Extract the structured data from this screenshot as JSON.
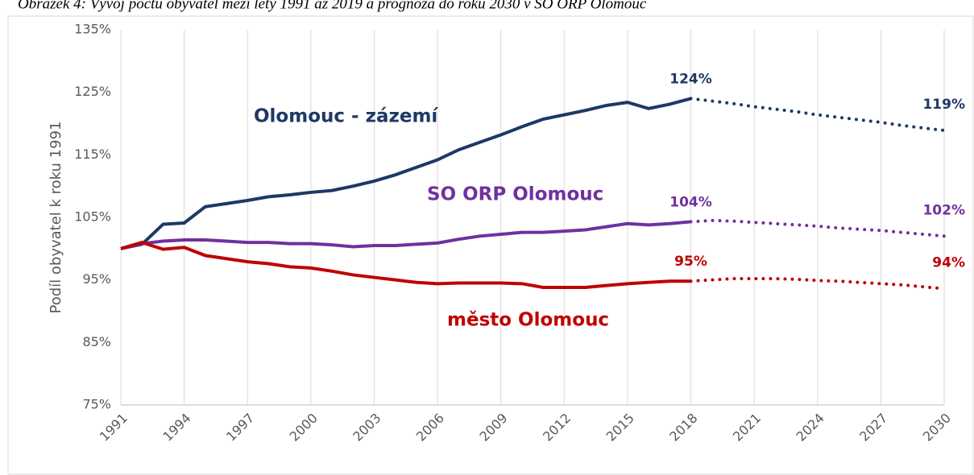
{
  "chart_data": {
    "type": "line",
    "title": "Obrázek 4: Vývoj počtu obyvatel mezi lety 1991 až 2019 a prognóza do roku 2030 v SO ORP Olomouc",
    "y_label": "Podíl obyvatel k roku 1991",
    "x": [
      1991,
      1992,
      1993,
      1994,
      1995,
      1996,
      1997,
      1998,
      1999,
      2000,
      2001,
      2002,
      2003,
      2004,
      2005,
      2006,
      2007,
      2008,
      2009,
      2010,
      2011,
      2012,
      2013,
      2014,
      2015,
      2016,
      2017,
      2018,
      2019,
      2020,
      2021,
      2022,
      2023,
      2024,
      2025,
      2026,
      2027,
      2028,
      2029,
      2030
    ],
    "forecast_from": 2018,
    "xlim": [
      1991,
      2030
    ],
    "xticks": [
      1991,
      1994,
      1997,
      2000,
      2003,
      2006,
      2009,
      2012,
      2015,
      2018,
      2021,
      2024,
      2027,
      2030
    ],
    "ylim": [
      75,
      135
    ],
    "yticks": [
      {
        "value": 75,
        "label": "75%"
      },
      {
        "value": 85,
        "label": "85%"
      },
      {
        "value": 95,
        "label": "95%"
      },
      {
        "value": 105,
        "label": "105%"
      },
      {
        "value": 115,
        "label": "115%"
      },
      {
        "value": 125,
        "label": "125%"
      },
      {
        "value": 135,
        "label": "135%"
      }
    ],
    "grid": "x",
    "series": [
      {
        "name": "Olomouc - zázemí",
        "color": "#1f3864",
        "values": [
          100,
          100.7,
          103.9,
          104.1,
          106.7,
          107.2,
          107.7,
          108.3,
          108.6,
          109.0,
          109.3,
          110.0,
          110.8,
          111.8,
          113.0,
          114.2,
          115.8,
          117.0,
          118.2,
          119.5,
          120.7,
          121.4,
          122.1,
          122.9,
          123.4,
          122.4,
          123.1,
          124.0,
          123.6,
          123.2,
          122.7,
          122.3,
          121.9,
          121.4,
          121.0,
          120.6,
          120.2,
          119.7,
          119.3,
          118.9
        ],
        "value_labels": [
          null,
          null,
          null,
          null,
          null,
          null,
          null,
          null,
          null,
          null,
          null,
          null,
          null,
          null,
          null,
          null,
          null,
          null,
          null,
          null,
          null,
          null,
          null,
          null,
          null,
          null,
          null,
          "124%",
          null,
          null,
          null,
          null,
          null,
          null,
          null,
          null,
          null,
          null,
          null,
          "119%"
        ]
      },
      {
        "name": "SO ORP Olomouc",
        "color": "#7030a0",
        "values": [
          100,
          100.8,
          101.2,
          101.4,
          101.4,
          101.2,
          101.0,
          101.0,
          100.8,
          100.8,
          100.6,
          100.3,
          100.5,
          100.5,
          100.7,
          100.9,
          101.5,
          102.0,
          102.3,
          102.6,
          102.6,
          102.8,
          103.0,
          103.5,
          104.0,
          103.8,
          104.0,
          104.3,
          104.5,
          104.4,
          104.2,
          104.0,
          103.8,
          103.6,
          103.3,
          103.1,
          102.9,
          102.6,
          102.3,
          102.0
        ],
        "value_labels": [
          null,
          null,
          null,
          null,
          null,
          null,
          null,
          null,
          null,
          null,
          null,
          null,
          null,
          null,
          null,
          null,
          null,
          null,
          null,
          null,
          null,
          null,
          null,
          null,
          null,
          null,
          null,
          "104%",
          null,
          null,
          null,
          null,
          null,
          null,
          null,
          null,
          null,
          null,
          null,
          "102%"
        ]
      },
      {
        "name": "město Olomouc",
        "color": "#c00000",
        "values": [
          100,
          101,
          99.9,
          100.2,
          98.9,
          98.4,
          97.9,
          97.6,
          97.1,
          96.9,
          96.4,
          95.8,
          95.4,
          95.0,
          94.6,
          94.4,
          94.5,
          94.5,
          94.5,
          94.4,
          93.8,
          93.8,
          93.8,
          94.1,
          94.4,
          94.6,
          94.8,
          94.8,
          95.0,
          95.2,
          95.2,
          95.2,
          95.1,
          94.9,
          94.8,
          94.6,
          94.4,
          94.2,
          93.9,
          93.6
        ],
        "value_labels": [
          null,
          null,
          null,
          null,
          null,
          null,
          null,
          null,
          null,
          null,
          null,
          null,
          null,
          null,
          null,
          null,
          null,
          null,
          null,
          null,
          null,
          null,
          null,
          null,
          null,
          null,
          null,
          "95%",
          null,
          null,
          null,
          null,
          null,
          null,
          null,
          null,
          null,
          null,
          null,
          "94%"
        ]
      }
    ]
  }
}
